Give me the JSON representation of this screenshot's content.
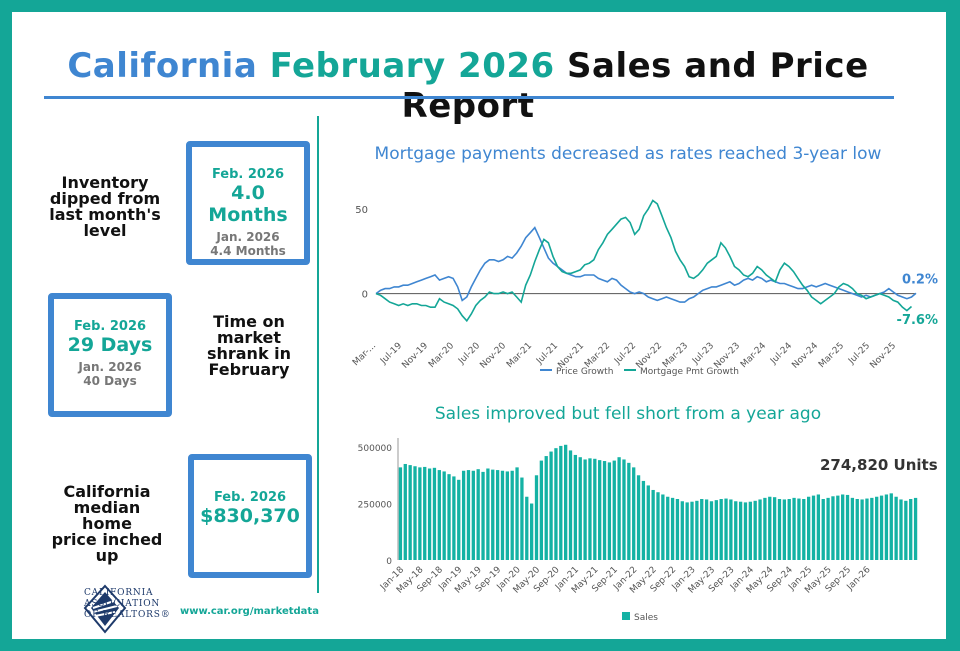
{
  "title": {
    "part1": "California",
    "part2": "February 2026",
    "part3": "Sales and Price Report"
  },
  "left_panel": {
    "inventory": {
      "label": [
        "Inventory",
        "dipped from",
        "last month's",
        "level"
      ],
      "current_period": "Feb. 2026",
      "current_value": "4.0 Months",
      "prior_period": "Jan. 2026",
      "prior_value": "4.4 Months"
    },
    "time_on_market": {
      "label": [
        "Time on",
        "market",
        "shrank in",
        "February"
      ],
      "current_period": "Feb. 2026",
      "current_value": "29 Days",
      "prior_period": "Jan. 2026",
      "prior_value": "40 Days"
    },
    "median_price": {
      "label": [
        "California",
        "median home",
        "price inched",
        "up"
      ],
      "current_period": "Feb. 2026",
      "current_value": "$830,370"
    }
  },
  "footer": {
    "logo_text": [
      "CALIFORNIA",
      "ASSOCIATION",
      "OF REALTORS®"
    ],
    "url": "www.car.org/marketdata"
  },
  "colors": {
    "teal": "#14a697",
    "blue": "#3f86d1",
    "price_line": "#3f86d1",
    "mortgage_line": "#14a697",
    "bar": "#14b2a4"
  },
  "chart_data": [
    {
      "type": "line",
      "title": "Mortgage payments decreased as rates reached 3-year low",
      "x_tick_labels": [
        "Mar-...",
        "Jul-19",
        "Nov-19",
        "Mar-20",
        "Jul-20",
        "Nov-20",
        "Mar-21",
        "Jul-21",
        "Nov-21",
        "Mar-22",
        "Jul-22",
        "Nov-22",
        "Mar-23",
        "Jul-23",
        "Nov-23",
        "Mar-24",
        "Jul-24",
        "Nov-24",
        "Mar-25",
        "Jul-25",
        "Nov-25"
      ],
      "y_tick_labels": [
        "0",
        "50"
      ],
      "ylim": [
        -25,
        60
      ],
      "grid": false,
      "legend": "bottom",
      "annotations": {
        "price_end": "0.2%",
        "mortgage_end": "-7.6%"
      },
      "series": [
        {
          "name": "Price Growth",
          "values": [
            0,
            2,
            3,
            3,
            4,
            4,
            5,
            5,
            6,
            7,
            8,
            9,
            10,
            11,
            8,
            9,
            10,
            9,
            4,
            -4,
            -2,
            4,
            9,
            14,
            18,
            20,
            20,
            19,
            20,
            22,
            21,
            24,
            28,
            33,
            36,
            39,
            33,
            27,
            21,
            18,
            16,
            14,
            12,
            11,
            10,
            10,
            11,
            11,
            11,
            9,
            8,
            7,
            9,
            8,
            5,
            3,
            1,
            0,
            1,
            0,
            -2,
            -3,
            -4,
            -3,
            -2,
            -3,
            -4,
            -5,
            -5,
            -3,
            -2,
            0,
            2,
            3,
            4,
            4,
            5,
            6,
            7,
            5,
            6,
            8,
            9,
            8,
            10,
            9,
            7,
            8,
            7,
            6,
            6,
            5,
            4,
            3,
            3,
            4,
            5,
            4,
            5,
            6,
            5,
            4,
            3,
            2,
            1,
            0,
            -1,
            -2,
            -1,
            -2,
            -1,
            0,
            1,
            3,
            1,
            -1,
            -2,
            -3,
            -2,
            0.2
          ]
        },
        {
          "name": "Mortgage Pmt Growth",
          "values": [
            0,
            -1,
            -3,
            -5,
            -6,
            -7,
            -6,
            -7,
            -6,
            -6,
            -7,
            -7,
            -8,
            -8,
            -3,
            -5,
            -6,
            -7,
            -9,
            -13,
            -16,
            -12,
            -7,
            -4,
            -2,
            1,
            0,
            0,
            1,
            0,
            1,
            -2,
            -5,
            5,
            11,
            19,
            26,
            32,
            30,
            22,
            16,
            13,
            12,
            12,
            13,
            14,
            17,
            18,
            20,
            26,
            30,
            35,
            38,
            41,
            44,
            45,
            42,
            35,
            38,
            46,
            50,
            55,
            53,
            46,
            39,
            33,
            25,
            20,
            16,
            10,
            9,
            11,
            14,
            18,
            20,
            22,
            30,
            27,
            22,
            16,
            14,
            11,
            10,
            12,
            16,
            14,
            11,
            9,
            7,
            14,
            18,
            16,
            13,
            9,
            5,
            2,
            -2,
            -4,
            -6,
            -4,
            -2,
            0,
            4,
            6,
            5,
            3,
            0,
            -1,
            -3,
            -2,
            -1,
            0,
            -1,
            -2,
            -4,
            -5,
            -8,
            -10,
            -7.6
          ]
        }
      ]
    },
    {
      "type": "bar",
      "title": "Sales improved but fell short from a year ago",
      "annotation": "274,820 Units",
      "x_tick_labels": [
        "Jan-18",
        "May-18",
        "Sep-18",
        "Jan-19",
        "May-19",
        "Sep-19",
        "Jan-20",
        "May-20",
        "Sep-20",
        "Jan-21",
        "May-21",
        "Sep-21",
        "Jan-22",
        "May-22",
        "Sep-22",
        "Jan-23",
        "May-23",
        "Sep-23",
        "Jan-24",
        "May-24",
        "Sep-24",
        "Jan-25",
        "May-25",
        "Sep-25",
        "Jan-26"
      ],
      "y_tick_labels": [
        "0",
        "250000",
        "500000"
      ],
      "ylim": [
        0,
        540000
      ],
      "legend": "bottom",
      "series": [
        {
          "name": "Sales",
          "values": [
            410000,
            425000,
            420000,
            415000,
            410000,
            412000,
            405000,
            408000,
            398000,
            392000,
            380000,
            370000,
            355000,
            395000,
            398000,
            395000,
            402000,
            390000,
            405000,
            400000,
            398000,
            395000,
            392000,
            395000,
            410000,
            365000,
            280000,
            250000,
            375000,
            440000,
            460000,
            480000,
            495000,
            505000,
            510000,
            485000,
            465000,
            455000,
            445000,
            450000,
            448000,
            442000,
            438000,
            432000,
            440000,
            455000,
            445000,
            430000,
            410000,
            375000,
            350000,
            330000,
            310000,
            300000,
            290000,
            280000,
            275000,
            270000,
            260000,
            255000,
            258000,
            262000,
            270000,
            268000,
            260000,
            265000,
            270000,
            272000,
            268000,
            260000,
            258000,
            255000,
            258000,
            262000,
            268000,
            275000,
            280000,
            278000,
            270000,
            268000,
            270000,
            275000,
            272000,
            270000,
            280000,
            285000,
            290000,
            270000,
            275000,
            282000,
            285000,
            290000,
            288000,
            275000,
            270000,
            268000,
            272000,
            275000,
            280000,
            285000,
            290000,
            295000,
            280000,
            268000,
            262000,
            270000,
            274820
          ]
        }
      ]
    }
  ]
}
